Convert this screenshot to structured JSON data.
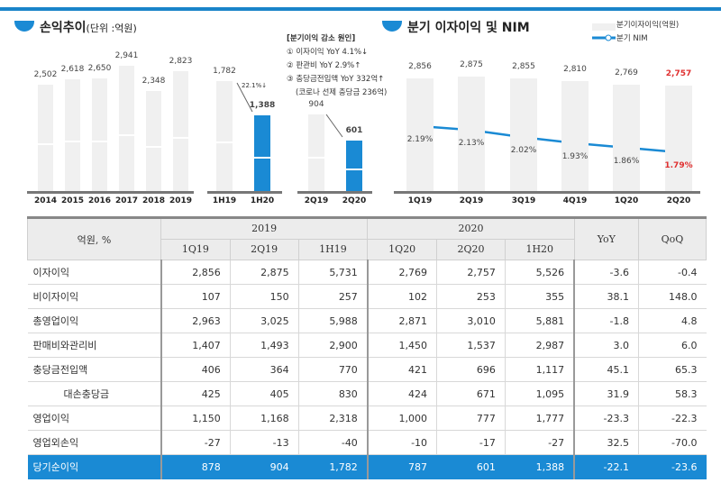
{
  "left": {
    "title": "손익추이",
    "unit": "(단위 :억원)",
    "annual": {
      "categories": [
        "2014",
        "2015",
        "2016",
        "2017",
        "2018",
        "2019"
      ],
      "values": [
        2502,
        2618,
        2650,
        2941,
        2348,
        2823
      ],
      "labels": [
        "2,502",
        "2,618",
        "2,650",
        "2,941",
        "2,348",
        "2,823"
      ]
    },
    "half": {
      "categories": [
        "1H19",
        "1H20"
      ],
      "values": [
        1782,
        1388
      ],
      "labels": [
        "1,782",
        "1,388"
      ],
      "change": "22.1%↓"
    },
    "quarter": {
      "categories": [
        "2Q19",
        "2Q20"
      ],
      "values": [
        904,
        601
      ],
      "labels": [
        "904",
        "601"
      ]
    },
    "notes": [
      "[분기이익 감소 원인]",
      "① 이자이익 YoY 4.1%↓",
      "② 판관비 YoY 2.9%↑",
      "③ 충당금전입액 YoY 332억↑",
      "(코로나 선제 충당금 236억)"
    ]
  },
  "chart_data": [
    {
      "type": "bar",
      "title": "손익추이",
      "categories": [
        "2014",
        "2015",
        "2016",
        "2017",
        "2018",
        "2019",
        "1H19",
        "1H20",
        "2Q19",
        "2Q20"
      ],
      "values": [
        2502,
        2618,
        2650,
        2941,
        2348,
        2823,
        1782,
        1388,
        904,
        601
      ]
    },
    {
      "type": "bar+line",
      "title": "분기 이자이익 및 NIM",
      "categories": [
        "1Q19",
        "2Q19",
        "3Q19",
        "4Q19",
        "1Q20",
        "2Q20"
      ],
      "series": [
        {
          "name": "분기이자이익(억원)",
          "values": [
            2856,
            2875,
            2855,
            2810,
            2769,
            2757
          ]
        },
        {
          "name": "분기 NIM",
          "values": [
            2.19,
            2.13,
            2.02,
            1.93,
            1.86,
            1.79
          ],
          "unit": "%"
        }
      ],
      "legend": "top-right",
      "highlight_color": "#e03030",
      "bar_color": "#f0f0f0",
      "line_color": "#1a8ad4"
    }
  ],
  "right": {
    "title": "분기 이자이익 및 NIM",
    "legend_bar": "분기이자이익(억원)",
    "legend_line": "분기 NIM",
    "bar_labels": [
      "2,856",
      "2,875",
      "2,855",
      "2,810",
      "2,769",
      "2,757"
    ],
    "nim_labels": [
      "2.19%",
      "2.13%",
      "2.02%",
      "1.93%",
      "1.86%",
      "1.79%"
    ]
  },
  "table": {
    "corner": "억원, %",
    "year1": "2019",
    "year2": "2020",
    "cols": [
      "1Q19",
      "2Q19",
      "1H19",
      "1Q20",
      "2Q20",
      "1H20"
    ],
    "yoy": "YoY",
    "qoq": "QoQ",
    "rows": [
      {
        "label": "이자이익",
        "v": [
          "2,856",
          "2,875",
          "5,731",
          "2,769",
          "2,757",
          "5,526",
          "-3.6",
          "-0.4"
        ]
      },
      {
        "label": "비이자이익",
        "v": [
          "107",
          "150",
          "257",
          "102",
          "253",
          "355",
          "38.1",
          "148.0"
        ]
      },
      {
        "label": "총영업이익",
        "v": [
          "2,963",
          "3,025",
          "5,988",
          "2,871",
          "3,010",
          "5,881",
          "-1.8",
          "4.8"
        ]
      },
      {
        "label": "판매비와관리비",
        "v": [
          "1,407",
          "1,493",
          "2,900",
          "1,450",
          "1,537",
          "2,987",
          "3.0",
          "6.0"
        ]
      },
      {
        "label": "충당금전입액",
        "v": [
          "406",
          "364",
          "770",
          "421",
          "696",
          "1,117",
          "45.1",
          "65.3"
        ]
      },
      {
        "label": "대손충당금",
        "v": [
          "425",
          "405",
          "830",
          "424",
          "671",
          "1,095",
          "31.9",
          "58.3"
        ]
      },
      {
        "label": "영업이익",
        "v": [
          "1,150",
          "1,168",
          "2,318",
          "1,000",
          "777",
          "1,777",
          "-23.3",
          "-22.3"
        ]
      },
      {
        "label": "영업외손익",
        "v": [
          "-27",
          "-13",
          "-40",
          "-10",
          "-17",
          "-27",
          "32.5",
          "-70.0"
        ]
      },
      {
        "label": "당기순이익",
        "v": [
          "878",
          "904",
          "1,782",
          "787",
          "601",
          "1,388",
          "-22.1",
          "-23.6"
        ]
      }
    ]
  }
}
